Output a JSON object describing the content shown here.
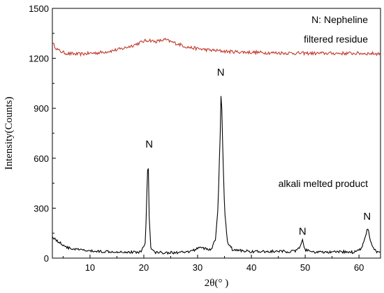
{
  "chart_data": {
    "type": "line",
    "title": "",
    "xlabel": "2θ(°  )",
    "ylabel": "Intensity(Counts)",
    "xlim": [
      3,
      64
    ],
    "ylim": [
      0,
      1500
    ],
    "xticks": [
      10,
      20,
      30,
      40,
      50,
      60
    ],
    "yticks": [
      0,
      300,
      600,
      900,
      1200,
      1500
    ],
    "grid": false,
    "legend": "none",
    "series": [
      {
        "name": "filtered residue",
        "color": "#c0392b",
        "x": [
          3,
          4,
          5,
          6,
          8,
          10,
          12,
          14,
          16,
          18,
          19,
          20,
          21,
          22,
          23,
          24,
          25,
          26,
          27,
          28,
          30,
          32,
          34,
          36,
          38,
          40,
          44,
          48,
          52,
          56,
          60,
          64
        ],
        "y": [
          1290,
          1250,
          1235,
          1228,
          1225,
          1230,
          1235,
          1245,
          1258,
          1278,
          1290,
          1303,
          1310,
          1300,
          1305,
          1312,
          1300,
          1290,
          1280,
          1268,
          1258,
          1250,
          1245,
          1240,
          1238,
          1236,
          1233,
          1231,
          1230,
          1230,
          1230,
          1228
        ]
      },
      {
        "name": "alkali melted product",
        "color": "#000000",
        "x": [
          3,
          4,
          5,
          6,
          8,
          10,
          12,
          14,
          16,
          18,
          19.5,
          20.3,
          20.6,
          20.8,
          21.0,
          21.3,
          22,
          24,
          26,
          28,
          29.5,
          30.5,
          31.5,
          32.5,
          33.3,
          33.8,
          34.2,
          34.4,
          34.6,
          35.0,
          35.5,
          36.5,
          38,
          40,
          42,
          44,
          46,
          48,
          49.0,
          49.5,
          50.0,
          51,
          53,
          55,
          57,
          59,
          60.5,
          61.2,
          61.6,
          62.0,
          62.6,
          63.2,
          64
        ],
        "y": [
          130,
          100,
          80,
          60,
          50,
          42,
          40,
          40,
          38,
          35,
          38,
          100,
          420,
          630,
          250,
          60,
          35,
          33,
          33,
          34,
          50,
          70,
          55,
          50,
          110,
          300,
          750,
          1050,
          750,
          300,
          100,
          50,
          45,
          40,
          38,
          40,
          40,
          40,
          60,
          105,
          50,
          38,
          35,
          35,
          38,
          35,
          60,
          130,
          190,
          120,
          60,
          40,
          30
        ]
      }
    ],
    "annotations": [
      {
        "text": "N",
        "x": 21,
        "y": 640
      },
      {
        "text": "N",
        "x": 34.3,
        "y": 1070
      },
      {
        "text": "N",
        "x": 49.5,
        "y": 115
      },
      {
        "text": "N",
        "x": 61.5,
        "y": 205
      }
    ],
    "text_labels": {
      "legend_title": "N: Nepheline",
      "residue_label": "filtered residue",
      "product_label": "alkali melted product"
    }
  }
}
